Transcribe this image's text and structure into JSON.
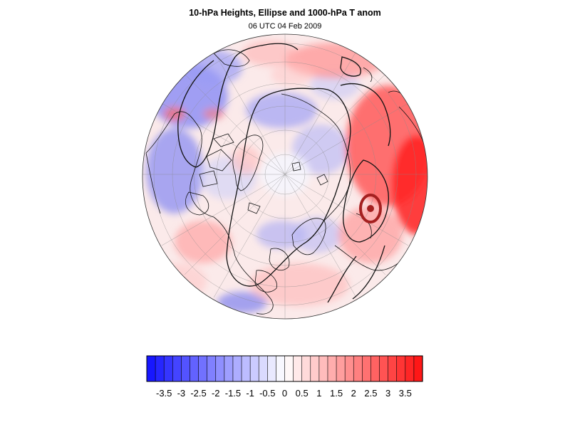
{
  "title": "10-hPa Heights, Ellipse and 1000-hPa T anom",
  "subtitle": "06 UTC 04 Feb 2009",
  "colorbar": {
    "min_color": "#1010ff",
    "mid_color": "#ffffff",
    "max_color": "#ff1010",
    "labels": [
      "-3.5",
      "-3",
      "-2.5",
      "-2",
      "-1.5",
      "-1",
      "-0.5",
      "0",
      "0.5",
      "1",
      "1.5",
      "2",
      "2.5",
      "3",
      "3.5"
    ],
    "levels": [
      -4,
      -3.75,
      -3.5,
      -3.25,
      -3,
      -2.75,
      -2.5,
      -2.25,
      -2,
      -1.75,
      -1.5,
      -1.25,
      -1,
      -0.75,
      -0.5,
      -0.25,
      0,
      0.25,
      0.5,
      0.75,
      1,
      1.25,
      1.5,
      1.75,
      2,
      2.25,
      2.5,
      2.75,
      3,
      3.25,
      3.5,
      3.75,
      4
    ]
  },
  "map": {
    "projection": "orthographic-north-polar",
    "field": "1000-hPa temperature anomaly",
    "overlay_contours": "10-hPa heights",
    "vortex_ellipse_color": "#a52020"
  }
}
